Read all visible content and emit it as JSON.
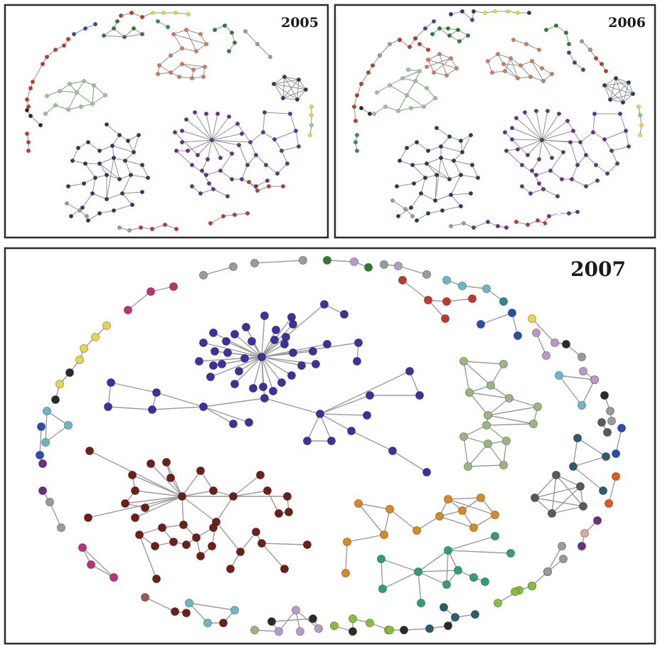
{
  "panels": [
    {
      "id": "p2005",
      "year": "2005"
    },
    {
      "id": "p2006",
      "year": "2006"
    },
    {
      "id": "p2007",
      "year": "2007"
    }
  ],
  "colors": {
    "red": "#c0392b",
    "dark_red": "#8b2323",
    "navy": "#1f3f66",
    "purple": "#6a2f8a",
    "green": "#2e7d32",
    "light_green": "#8fc98a",
    "salmon": "#d17a5a",
    "yellow": "#e6d64a",
    "blue": "#2a4db0",
    "teal": "#2a8a8a",
    "gray": "#9a9a9a",
    "dark": "#2b2b2b",
    "indigo": "#3b32a0",
    "maroon": "#6e2018",
    "sage": "#97b77e",
    "orange": "#d88a1e",
    "seafoam": "#2fa070",
    "slate": "#555b60",
    "pink": "#c0307a",
    "skyblue": "#6bb6c9",
    "lime": "#86c03a",
    "lavender": "#b89ac8"
  }
}
